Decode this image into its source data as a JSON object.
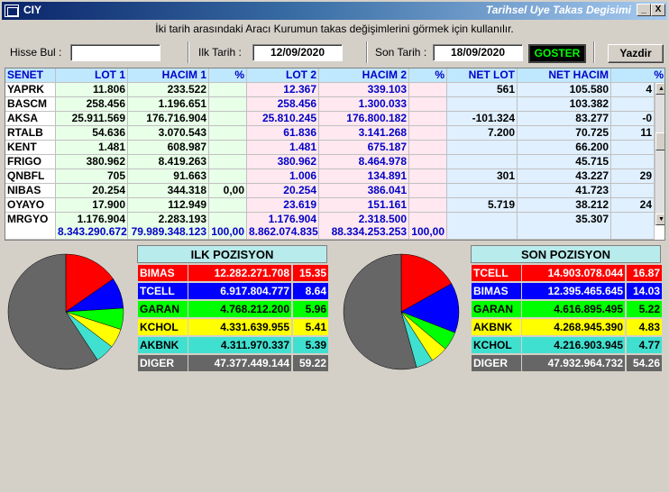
{
  "window": {
    "title": "CIY",
    "right_title": "Tarihsel Uye Takas Degisimi",
    "min": "_",
    "close": "X"
  },
  "info_text": "İki tarih arasındaki  Aracı Kurumun takas değişimlerini görmek için kullanılır.",
  "form": {
    "hisse_label": "Hisse Bul :",
    "hisse_value": "",
    "ilk_label": "Ilk Tarih :",
    "ilk_value": "12/09/2020",
    "son_label": "Son Tarih :",
    "son_value": "18/09/2020",
    "goster": "GOSTER",
    "yazdir": "Yazdir"
  },
  "table": {
    "headers": [
      "SENET",
      "LOT 1",
      "HACIM 1",
      "%",
      "LOT 2",
      "HACIM 2",
      "%",
      "NET LOT",
      "NET HACIM",
      "%"
    ],
    "rows": [
      [
        "YAPRK",
        "11.806",
        "233.522",
        "",
        "12.367",
        "339.103",
        "",
        "561",
        "105.580",
        "4"
      ],
      [
        "BASCM",
        "258.456",
        "1.196.651",
        "",
        "258.456",
        "1.300.033",
        "",
        "",
        "103.382",
        ""
      ],
      [
        "AKSA",
        "25.911.569",
        "176.716.904",
        "",
        "25.810.245",
        "176.800.182",
        "",
        "-101.324",
        "83.277",
        "-0"
      ],
      [
        "RTALB",
        "54.636",
        "3.070.543",
        "",
        "61.836",
        "3.141.268",
        "",
        "7.200",
        "70.725",
        "11"
      ],
      [
        "KENT",
        "1.481",
        "608.987",
        "",
        "1.481",
        "675.187",
        "",
        "",
        "66.200",
        ""
      ],
      [
        "FRIGO",
        "380.962",
        "8.419.263",
        "",
        "380.962",
        "8.464.978",
        "",
        "",
        "45.715",
        ""
      ],
      [
        "QNBFL",
        "705",
        "91.663",
        "",
        "1.006",
        "134.891",
        "",
        "301",
        "43.227",
        "29"
      ],
      [
        "NIBAS",
        "20.254",
        "344.318",
        "0,00",
        "20.254",
        "386.041",
        "",
        "",
        "41.723",
        ""
      ],
      [
        "OYAYO",
        "17.900",
        "112.949",
        "",
        "23.619",
        "151.161",
        "",
        "5.719",
        "38.212",
        "24"
      ],
      [
        "MRGYO",
        "1.176.904",
        "2.283.193",
        "",
        "1.176.904",
        "2.318.500",
        "",
        "",
        "35.307",
        ""
      ]
    ],
    "totals": [
      "",
      "8.343.290.672",
      "79.989.348.123",
      "100,00",
      "8.862.074.835",
      "88.334.253.253",
      "100,00",
      "",
      "",
      ""
    ]
  },
  "ilk_pozisyon": {
    "title": "ILK POZISYON",
    "rows": [
      {
        "name": "BIMAS",
        "value": "12.282.271.708",
        "pct": "15.35",
        "color": "#ff0000",
        "text": "#ffffff"
      },
      {
        "name": "TCELL",
        "value": "6.917.804.777",
        "pct": "8.64",
        "color": "#0000ff",
        "text": "#ffffff"
      },
      {
        "name": "GARAN",
        "value": "4.768.212.200",
        "pct": "5.96",
        "color": "#00ff00",
        "text": "#000000"
      },
      {
        "name": "KCHOL",
        "value": "4.331.639.955",
        "pct": "5.41",
        "color": "#ffff00",
        "text": "#000000"
      },
      {
        "name": "AKBNK",
        "value": "4.311.970.337",
        "pct": "5.39",
        "color": "#40e0d0",
        "text": "#000000"
      },
      {
        "name": "DIGER",
        "value": "47.377.449.144",
        "pct": "59.22",
        "color": "#666666",
        "text": "#ffffff"
      }
    ]
  },
  "son_pozisyon": {
    "title": "SON POZISYON",
    "rows": [
      {
        "name": "TCELL",
        "value": "14.903.078.044",
        "pct": "16.87",
        "color": "#ff0000",
        "text": "#ffffff"
      },
      {
        "name": "BIMAS",
        "value": "12.395.465.645",
        "pct": "14.03",
        "color": "#0000ff",
        "text": "#ffffff"
      },
      {
        "name": "GARAN",
        "value": "4.616.895.495",
        "pct": "5.22",
        "color": "#00ff00",
        "text": "#000000"
      },
      {
        "name": "AKBNK",
        "value": "4.268.945.390",
        "pct": "4.83",
        "color": "#ffff00",
        "text": "#000000"
      },
      {
        "name": "KCHOL",
        "value": "4.216.903.945",
        "pct": "4.77",
        "color": "#40e0d0",
        "text": "#000000"
      },
      {
        "name": "DIGER",
        "value": "47.932.964.732",
        "pct": "54.26",
        "color": "#666666",
        "text": "#ffffff"
      }
    ]
  }
}
